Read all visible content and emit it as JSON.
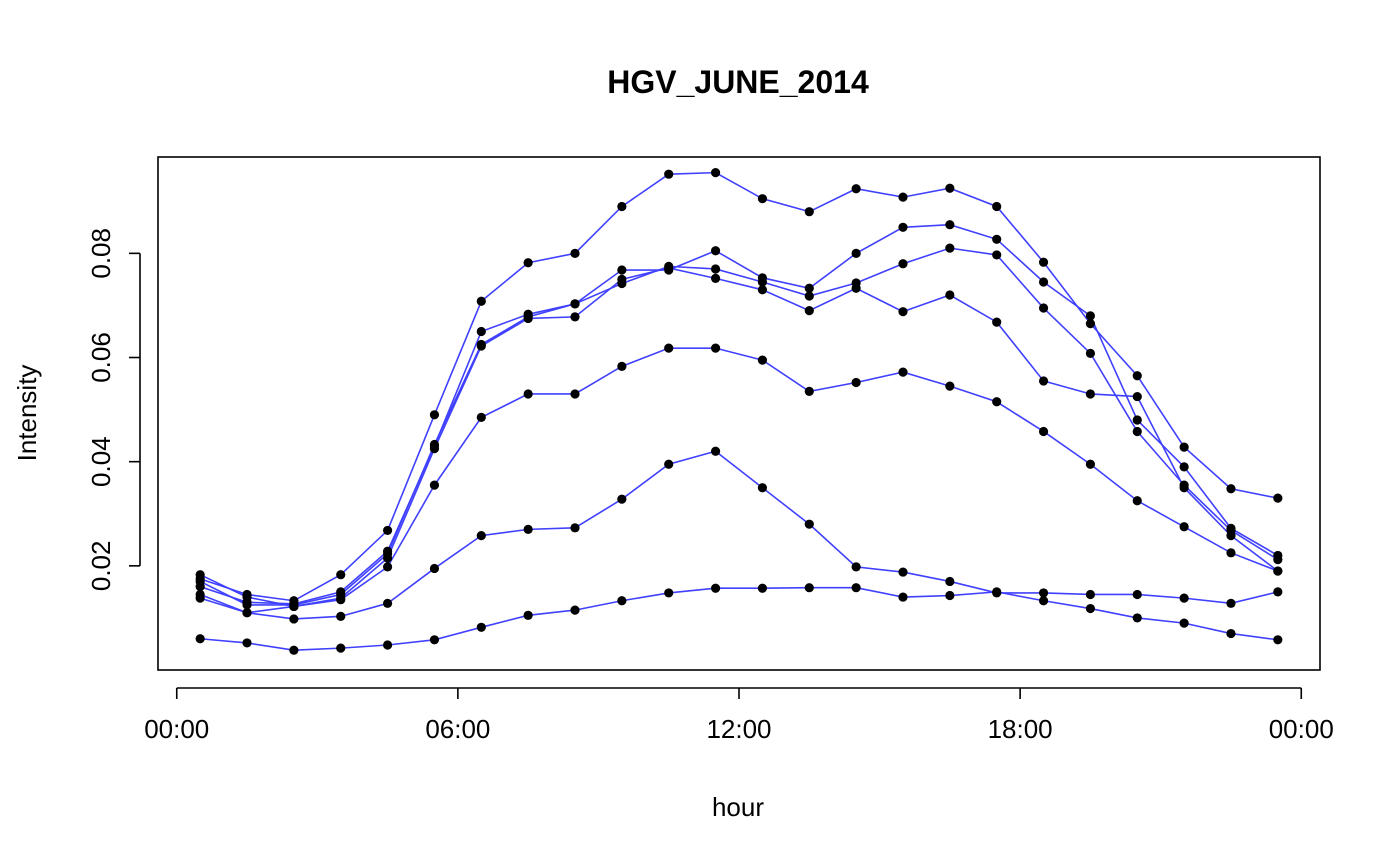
{
  "chart_data": {
    "type": "line",
    "title": "HGV_JUNE_2014",
    "xlabel": "hour",
    "ylabel": "Intensity",
    "x_ticks": [
      {
        "hour": 0,
        "label": "00:00"
      },
      {
        "hour": 6,
        "label": "06:00"
      },
      {
        "hour": 12,
        "label": "12:00"
      },
      {
        "hour": 18,
        "label": "18:00"
      },
      {
        "hour": 24,
        "label": "00:00"
      }
    ],
    "y_ticks": [
      {
        "value": 0.02,
        "label": "0.02"
      },
      {
        "value": 0.04,
        "label": "0.04"
      },
      {
        "value": 0.06,
        "label": "0.06"
      },
      {
        "value": 0.08,
        "label": "0.08"
      }
    ],
    "xlim": [
      -0.4,
      24.4
    ],
    "ylim": [
      0.0,
      0.0985
    ],
    "grid": false,
    "line_color": "#4040ff",
    "point_color": "#000000",
    "x": [
      0.5,
      1.5,
      2.5,
      3.5,
      4.5,
      5.5,
      6.5,
      7.5,
      8.5,
      9.5,
      10.5,
      11.5,
      12.5,
      13.5,
      14.5,
      15.5,
      16.5,
      17.5,
      18.5,
      19.5,
      20.5,
      21.5,
      22.5,
      23.5
    ],
    "series": [
      {
        "values": [
          0.0175,
          0.0145,
          0.0133,
          0.0183,
          0.0268,
          0.049,
          0.0708,
          0.0782,
          0.08,
          0.089,
          0.0952,
          0.0955,
          0.0905,
          0.088,
          0.0924,
          0.0908,
          0.0925,
          0.089,
          0.0783,
          0.0665,
          0.0565,
          0.0428,
          0.0348,
          0.033
        ]
      },
      {
        "values": [
          0.016,
          0.013,
          0.0127,
          0.015,
          0.0228,
          0.043,
          0.065,
          0.0683,
          0.0703,
          0.0768,
          0.0768,
          0.0805,
          0.0753,
          0.0733,
          0.08,
          0.085,
          0.0855,
          0.0827,
          0.0745,
          0.068,
          0.048,
          0.039,
          0.0272,
          0.022
        ]
      },
      {
        "values": [
          0.017,
          0.0125,
          0.0125,
          0.0145,
          0.0223,
          0.0433,
          0.0625,
          0.0678,
          0.0703,
          0.0742,
          0.0775,
          0.077,
          0.0745,
          0.0718,
          0.0743,
          0.078,
          0.081,
          0.0797,
          0.0695,
          0.0608,
          0.0458,
          0.0355,
          0.0268,
          0.0212
        ]
      },
      {
        "values": [
          0.0183,
          0.014,
          0.0122,
          0.0138,
          0.0215,
          0.0425,
          0.0622,
          0.0675,
          0.0678,
          0.075,
          0.0772,
          0.0752,
          0.073,
          0.069,
          0.0733,
          0.0688,
          0.072,
          0.0668,
          0.0555,
          0.053,
          0.0525,
          0.035,
          0.0258,
          0.019
        ]
      },
      {
        "values": [
          0.0145,
          0.011,
          0.0122,
          0.0135,
          0.0198,
          0.0355,
          0.0485,
          0.053,
          0.053,
          0.0583,
          0.0618,
          0.0618,
          0.0595,
          0.0535,
          0.0552,
          0.0572,
          0.0545,
          0.0515,
          0.0458,
          0.0395,
          0.0325,
          0.0275,
          0.0225,
          0.019
        ]
      },
      {
        "values": [
          0.0138,
          0.011,
          0.0098,
          0.0103,
          0.0128,
          0.0195,
          0.0258,
          0.027,
          0.0273,
          0.0328,
          0.0395,
          0.042,
          0.035,
          0.028,
          0.0198,
          0.0188,
          0.017,
          0.0148,
          0.0148,
          0.0145,
          0.0145,
          0.0138,
          0.0128,
          0.015
        ]
      },
      {
        "values": [
          0.006,
          0.0052,
          0.0038,
          0.0042,
          0.0048,
          0.0058,
          0.0082,
          0.0105,
          0.0115,
          0.0133,
          0.0148,
          0.0157,
          0.0157,
          0.0158,
          0.0158,
          0.014,
          0.0143,
          0.015,
          0.0133,
          0.0118,
          0.01,
          0.009,
          0.007,
          0.0058
        ]
      }
    ]
  }
}
